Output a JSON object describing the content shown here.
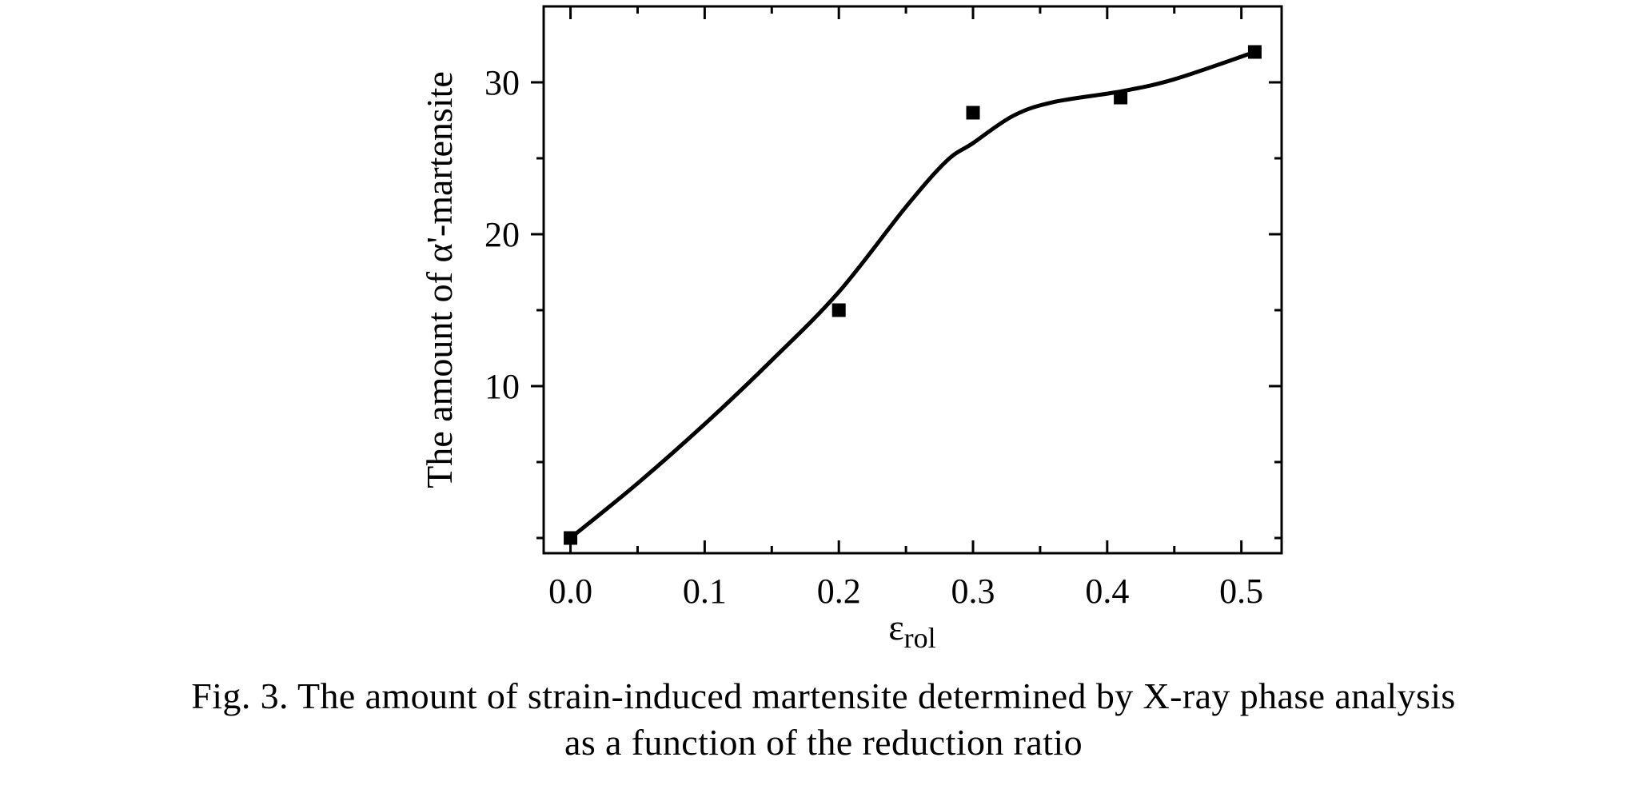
{
  "chart_data": {
    "type": "scatter",
    "title": "",
    "xlabel": "ε",
    "xlabel_subscript": "rol",
    "ylabel": "The amount of α'-martensite",
    "xlim": [
      -0.02,
      0.53
    ],
    "ylim": [
      -1,
      35
    ],
    "x_ticks": [
      0.0,
      0.1,
      0.2,
      0.3,
      0.4,
      0.5
    ],
    "x_tick_labels": [
      "0.0",
      "0.1",
      "0.2",
      "0.3",
      "0.4",
      "0.5"
    ],
    "x_minor_ticks": [
      0.05,
      0.15,
      0.25,
      0.35,
      0.45
    ],
    "y_ticks": [
      10,
      20,
      30
    ],
    "y_tick_labels": [
      "10",
      "20",
      "30"
    ],
    "y_minor_ticks": [
      0,
      5,
      15,
      25
    ],
    "grid": false,
    "series": [
      {
        "kind": "points",
        "marker": "square",
        "x": [
          0.0,
          0.2,
          0.3,
          0.41,
          0.51
        ],
        "y": [
          0,
          15,
          28,
          29,
          32
        ]
      },
      {
        "kind": "fitted-curve",
        "x": [
          0.0,
          0.05,
          0.1,
          0.15,
          0.2,
          0.25,
          0.28,
          0.3,
          0.33,
          0.36,
          0.41,
          0.45,
          0.51
        ],
        "y": [
          0,
          3.6,
          7.5,
          11.7,
          16.2,
          21.8,
          24.8,
          26.0,
          27.8,
          28.7,
          29.4,
          30.2,
          32.0
        ]
      }
    ],
    "colors": {
      "line": "#000000",
      "marker": "#000000",
      "axes": "#000000",
      "background": "#ffffff"
    }
  },
  "caption": {
    "line1": "Fig. 3. The amount of strain-induced martensite determined by X-ray phase analysis",
    "line2": "as a function of the reduction ratio"
  }
}
